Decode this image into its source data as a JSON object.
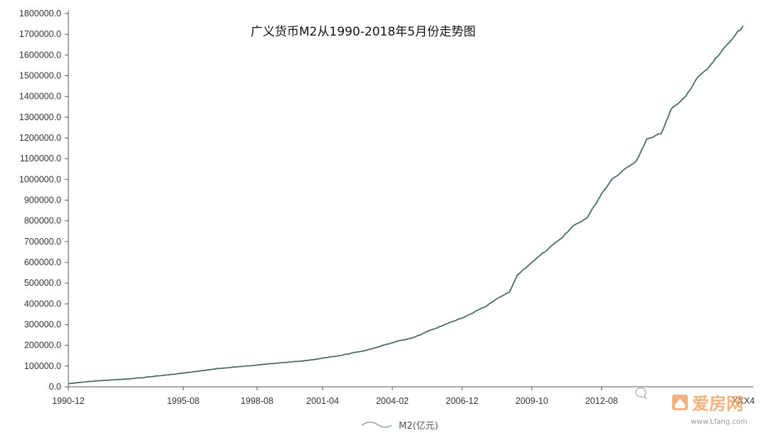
{
  "chart_data": {
    "type": "line",
    "title": "广义货币M2从1990-2018年5月份走势图",
    "xlabel": "",
    "ylabel": "",
    "ylim": [
      0,
      1800000
    ],
    "x_range": [
      "1990-12",
      "2018-05"
    ],
    "y_ticks": [
      "0.0",
      "100000.0",
      "200000.0",
      "300000.0",
      "400000.0",
      "500000.0",
      "600000.0",
      "700000.0",
      "800000.0",
      "900000.0",
      "1000000.0",
      "1100000.0",
      "1200000.0",
      "1300000.0",
      "1400000.0",
      "1500000.0",
      "1600000.0",
      "1700000.0",
      "1800000.0"
    ],
    "x_ticks": [
      "1990-12",
      "1995-08",
      "1998-08",
      "2001-04",
      "2004-02",
      "2006-12",
      "2009-10",
      "2012-08"
    ],
    "x_ticks_partial_right": "XXX4",
    "legend": {
      "position": "bottom-center"
    },
    "grid": false,
    "series": [
      {
        "name": "M2(亿元)",
        "color": "#4a6b6b",
        "x": [
          "1990-12",
          "1992-01",
          "1993-06",
          "1995-01",
          "1996-01",
          "1997-01",
          "1998-01",
          "1999-01",
          "2000-01",
          "2001-01",
          "2001-12",
          "2002-06",
          "2003-01",
          "2004-01",
          "2005-01",
          "2006-01",
          "2007-01",
          "2007-12",
          "2008-06",
          "2008-11",
          "2009-03",
          "2009-10",
          "2010-06",
          "2011-01",
          "2011-06",
          "2012-01",
          "2012-08",
          "2013-01",
          "2013-06",
          "2014-01",
          "2014-06",
          "2015-01",
          "2015-06",
          "2016-01",
          "2016-06",
          "2017-01",
          "2017-06",
          "2017-12",
          "2018-05"
        ],
        "values": [
          15000,
          28000,
          38000,
          58000,
          72000,
          88000,
          98000,
          110000,
          120000,
          133000,
          150000,
          162000,
          175000,
          210000,
          240000,
          290000,
          335000,
          390000,
          430000,
          455000,
          540000,
          600000,
          665000,
          720000,
          775000,
          815000,
          930000,
          1000000,
          1040000,
          1090000,
          1195000,
          1220000,
          1340000,
          1400000,
          1480000,
          1550000,
          1610000,
          1680000,
          1740000
        ]
      }
    ]
  },
  "watermark": {
    "brand": "爱房网",
    "site": "www.Lfang.com"
  },
  "colors": {
    "line": "#4a6b6b",
    "axis": "#555555",
    "watermark": "#f2a46a"
  }
}
